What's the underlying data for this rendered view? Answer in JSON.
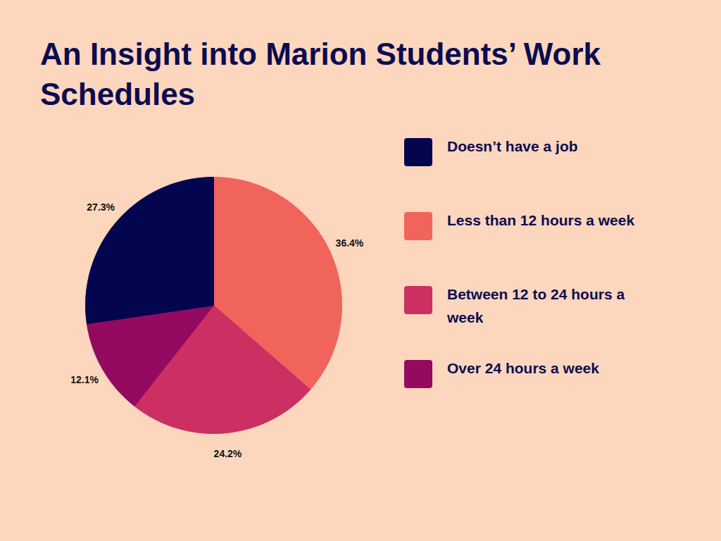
{
  "chart_data": {
    "type": "pie",
    "title": "An Insight into Marion Students’ Work Schedules",
    "categories": [
      "Doesn’t have a job",
      "Less than 12 hours a week",
      "Between 12 to 24 hours a week",
      "Over 24 hours a week"
    ],
    "values": [
      27.3,
      36.4,
      24.2,
      12.1
    ],
    "value_labels": [
      "27.3%",
      "36.4%",
      "24.2%",
      "12.1%"
    ],
    "colors": [
      "#04054f",
      "#f0645c",
      "#cc2f62",
      "#930a60"
    ],
    "data_labels": true,
    "legend": "right"
  }
}
